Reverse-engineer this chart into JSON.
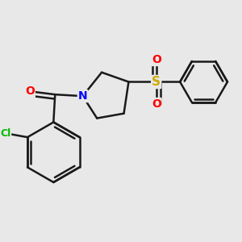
{
  "background_color": "#e8e8e8",
  "bond_color": "#1a1a1a",
  "bond_width": 1.8,
  "atom_colors": {
    "O": "#ff0000",
    "N": "#0000ff",
    "Cl": "#00bb00",
    "S": "#ccaa00",
    "C": "#1a1a1a"
  },
  "font_size_atom": 10,
  "font_size_cl": 9,
  "font_size_s": 11
}
